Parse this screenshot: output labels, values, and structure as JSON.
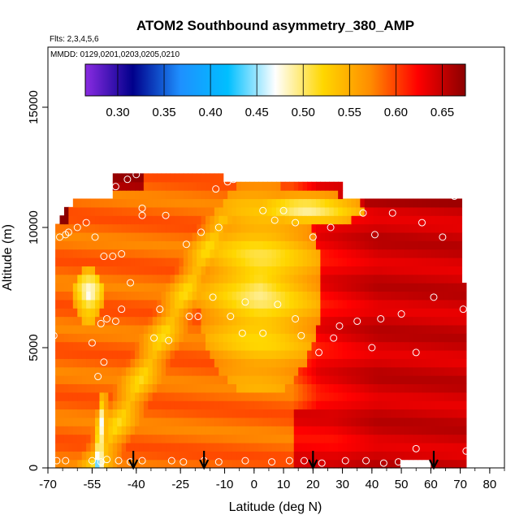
{
  "chart_data": {
    "type": "heatmap",
    "title": "ATOM2 Southbound asymmetry_380_AMP",
    "subtitle_flights": "Flts: 2,3,4,5,6",
    "subtitle_dates": "MMDD: 0129,0201,0203,0205,0210",
    "xlabel": "Latitude (deg N)",
    "ylabel": "Altitude (m)",
    "xlim": [
      -70,
      85
    ],
    "ylim": [
      0,
      17500
    ],
    "x_ticks": [
      -70,
      -55,
      -40,
      -25,
      -10,
      0,
      10,
      20,
      30,
      40,
      50,
      60,
      70,
      80
    ],
    "y_ticks": [
      0,
      5000,
      10000,
      15000
    ],
    "colorbar": {
      "range": [
        0.265,
        0.675
      ],
      "ticks": [
        0.3,
        0.35,
        0.4,
        0.45,
        0.5,
        0.55,
        0.6,
        0.65
      ],
      "tick_labels": [
        "0.30",
        "0.35",
        "0.40",
        "0.45",
        "0.50",
        "0.55",
        "0.60",
        "0.65"
      ],
      "colors": [
        "#8A2BE2",
        "#00008B",
        "#1E90FF",
        "#00BFFF",
        "#FFFFFF",
        "#FFD700",
        "#FF8C00",
        "#FF0000",
        "#8B0000"
      ]
    },
    "arrows_lat": [
      -41,
      -17,
      20,
      61
    ],
    "sample_points": [
      {
        "lat": -67,
        "alt": 300
      },
      {
        "lat": -64,
        "alt": 300
      },
      {
        "lat": -55,
        "alt": 300
      },
      {
        "lat": -52,
        "alt": 250
      },
      {
        "lat": -50,
        "alt": 350
      },
      {
        "lat": -46,
        "alt": 300
      },
      {
        "lat": -42,
        "alt": 250
      },
      {
        "lat": -38,
        "alt": 300
      },
      {
        "lat": -28,
        "alt": 300
      },
      {
        "lat": -24,
        "alt": 250
      },
      {
        "lat": -17,
        "alt": 300
      },
      {
        "lat": -12,
        "alt": 250
      },
      {
        "lat": -3,
        "alt": 300
      },
      {
        "lat": 6,
        "alt": 250
      },
      {
        "lat": 12,
        "alt": 300
      },
      {
        "lat": 17,
        "alt": 300
      },
      {
        "lat": 23,
        "alt": 200
      },
      {
        "lat": 31,
        "alt": 300
      },
      {
        "lat": 38,
        "alt": 300
      },
      {
        "lat": 44,
        "alt": 200
      },
      {
        "lat": 49,
        "alt": 250
      },
      {
        "lat": 55,
        "alt": 800
      },
      {
        "lat": 72,
        "alt": 700
      },
      {
        "lat": -53,
        "alt": 3800
      },
      {
        "lat": -51,
        "alt": 4400
      },
      {
        "lat": -55,
        "alt": 5200
      },
      {
        "lat": -50,
        "alt": 6200
      },
      {
        "lat": -52,
        "alt": 6000
      },
      {
        "lat": -47,
        "alt": 6100
      },
      {
        "lat": -45,
        "alt": 6600
      },
      {
        "lat": -42,
        "alt": 7700
      },
      {
        "lat": -34,
        "alt": 5400
      },
      {
        "lat": -29,
        "alt": 5300
      },
      {
        "lat": -32,
        "alt": 6600
      },
      {
        "lat": -22,
        "alt": 6300
      },
      {
        "lat": -19,
        "alt": 6300
      },
      {
        "lat": -14,
        "alt": 7100
      },
      {
        "lat": -8,
        "alt": 6300
      },
      {
        "lat": -4,
        "alt": 5600
      },
      {
        "lat": -3,
        "alt": 6900
      },
      {
        "lat": 3,
        "alt": 5600
      },
      {
        "lat": 8,
        "alt": 6800
      },
      {
        "lat": 14,
        "alt": 6200
      },
      {
        "lat": 16,
        "alt": 5500
      },
      {
        "lat": 22,
        "alt": 4800
      },
      {
        "lat": 27,
        "alt": 5400
      },
      {
        "lat": 29,
        "alt": 5900
      },
      {
        "lat": 35,
        "alt": 6100
      },
      {
        "lat": 40,
        "alt": 5000
      },
      {
        "lat": 43,
        "alt": 6200
      },
      {
        "lat": 50,
        "alt": 6400
      },
      {
        "lat": 55,
        "alt": 4800
      },
      {
        "lat": 61,
        "alt": 7100
      },
      {
        "lat": 71,
        "alt": 6600
      },
      {
        "lat": -68,
        "alt": 5500
      },
      {
        "lat": -66,
        "alt": 9600
      },
      {
        "lat": -64,
        "alt": 9700
      },
      {
        "lat": -63,
        "alt": 9800
      },
      {
        "lat": -60,
        "alt": 10000
      },
      {
        "lat": -57,
        "alt": 10200
      },
      {
        "lat": -54,
        "alt": 9600
      },
      {
        "lat": -51,
        "alt": 8800
      },
      {
        "lat": -48,
        "alt": 8800
      },
      {
        "lat": -45,
        "alt": 8900
      },
      {
        "lat": -38,
        "alt": 10500
      },
      {
        "lat": -30,
        "alt": 10500
      },
      {
        "lat": -23,
        "alt": 9300
      },
      {
        "lat": -18,
        "alt": 9800
      },
      {
        "lat": -12,
        "alt": 10000
      },
      {
        "lat": 3,
        "alt": 10700
      },
      {
        "lat": 7,
        "alt": 10300
      },
      {
        "lat": 14,
        "alt": 10200
      },
      {
        "lat": 20,
        "alt": 9600
      },
      {
        "lat": 26,
        "alt": 10000
      },
      {
        "lat": 37,
        "alt": 10600
      },
      {
        "lat": 41,
        "alt": 9700
      },
      {
        "lat": 47,
        "alt": 10600
      },
      {
        "lat": 57,
        "alt": 10200
      },
      {
        "lat": 64,
        "alt": 9600
      },
      {
        "lat": 68,
        "alt": 11300
      },
      {
        "lat": 72,
        "alt": 11200
      },
      {
        "lat": -47,
        "alt": 11700
      },
      {
        "lat": -43,
        "alt": 12000
      },
      {
        "lat": -40,
        "alt": 12200
      },
      {
        "lat": -13,
        "alt": 11600
      },
      {
        "lat": -9,
        "alt": 11900
      },
      {
        "lat": -7,
        "alt": 12000
      },
      {
        "lat": -38,
        "alt": 10800
      },
      {
        "lat": 10,
        "alt": 10700
      }
    ]
  }
}
